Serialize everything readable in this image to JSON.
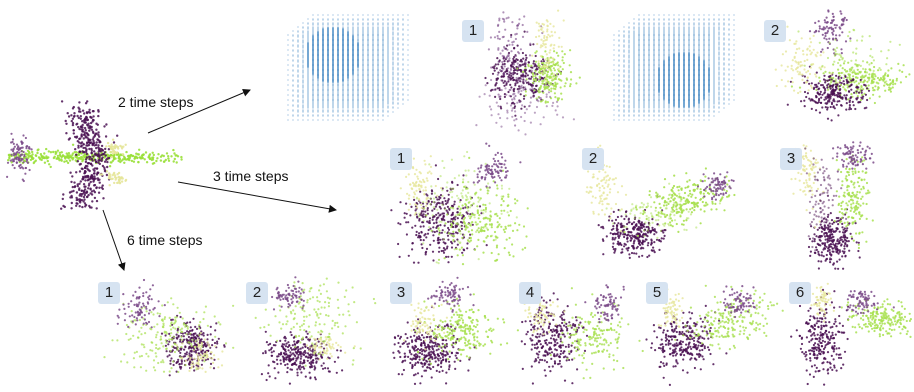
{
  "labels": {
    "arrow_2": "2 time steps",
    "arrow_3": "3 time steps",
    "arrow_6": "6 time steps"
  },
  "badges": {
    "row1": [
      "1",
      "2"
    ],
    "row2": [
      "1",
      "2",
      "3"
    ],
    "row3": [
      "1",
      "2",
      "3",
      "4",
      "5",
      "6"
    ]
  },
  "colors": {
    "airplane_body": "#9ae03a",
    "airplane_wing": "#4a1052",
    "cluster_purple": "#4a1052",
    "cluster_mauve": "#7a4a88",
    "cluster_green": "#a8e050",
    "cluster_yellow": "#e6e69a",
    "voxel_blue": "#4f8fc7",
    "badge_bg": "#d6e3f1"
  }
}
